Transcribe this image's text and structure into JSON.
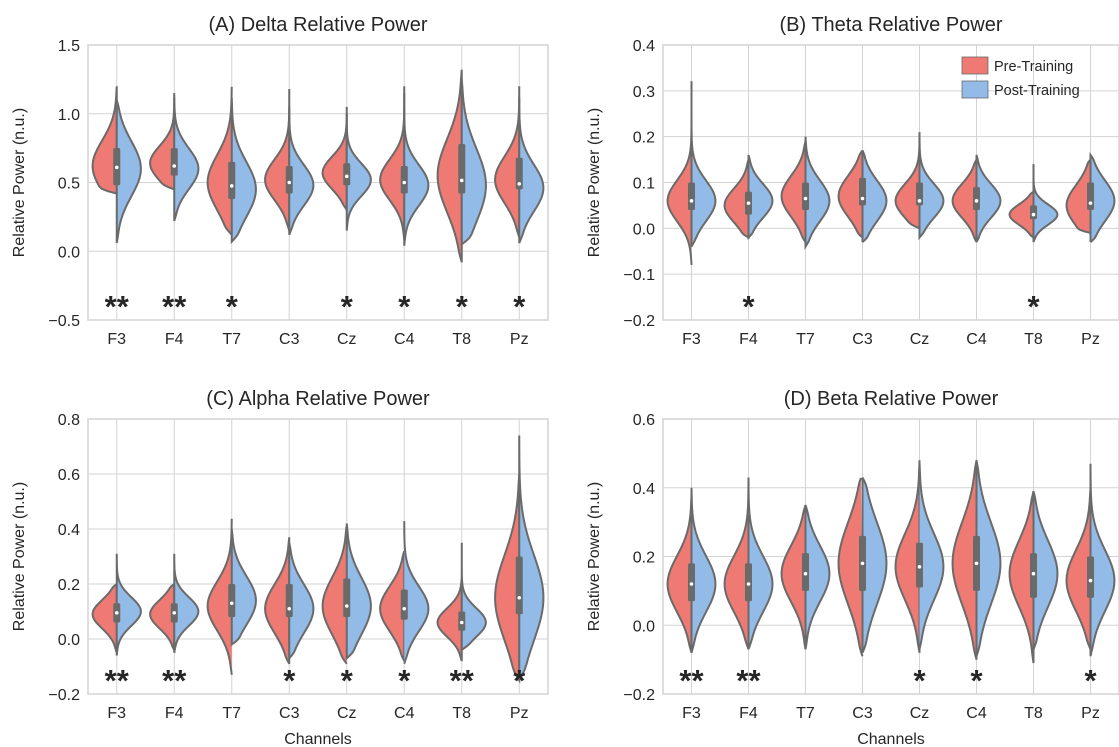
{
  "colors": {
    "pre": "#EE7A73",
    "post": "#93BBE8",
    "outline": "#6A6A6A",
    "grid": "#D3D3D3",
    "text": "#262626"
  },
  "legend": {
    "placement": "top-right",
    "pre_label": "Pre-Training",
    "post_label": "Post-Training"
  },
  "xlabel": "Channels",
  "chart_data": [
    {
      "type": "violin",
      "title": "(A) Delta Relative Power",
      "ylabel": "Relative Power (n.u.)",
      "xlabel": "",
      "ylim": [
        -0.5,
        1.5
      ],
      "yticks": [
        "−0.5",
        "0.0",
        "0.5",
        "1.0",
        "1.5"
      ],
      "categories": [
        "F3",
        "F4",
        "T7",
        "C3",
        "Cz",
        "C4",
        "T8",
        "Pz"
      ],
      "series": [
        {
          "name": "Pre-Training",
          "min": [
            0.42,
            0.45,
            0.12,
            0.15,
            0.3,
            0.08,
            -0.08,
            0.1
          ],
          "max": [
            1.2,
            1.15,
            1.22,
            1.18,
            1.05,
            1.2,
            1.32,
            1.2
          ],
          "median": [
            0.62,
            0.64,
            0.5,
            0.52,
            0.57,
            0.52,
            0.55,
            0.52
          ],
          "q1": [
            0.5,
            0.58,
            0.38,
            0.42,
            0.48,
            0.42,
            0.42,
            0.45
          ],
          "q3": [
            0.75,
            0.75,
            0.65,
            0.62,
            0.64,
            0.62,
            0.78,
            0.68
          ]
        },
        {
          "name": "Post-Training",
          "min": [
            0.06,
            0.22,
            0.07,
            0.12,
            0.15,
            0.04,
            0.05,
            0.06
          ],
          "max": [
            1.1,
            1.12,
            1.12,
            1.05,
            1.0,
            1.15,
            1.25,
            1.12
          ],
          "median": [
            0.6,
            0.6,
            0.45,
            0.48,
            0.52,
            0.48,
            0.48,
            0.46
          ],
          "q1": [
            0.48,
            0.55,
            0.38,
            0.42,
            0.48,
            0.42,
            0.42,
            0.45
          ],
          "q3": [
            0.75,
            0.75,
            0.65,
            0.62,
            0.64,
            0.62,
            0.78,
            0.68
          ]
        }
      ],
      "significance": [
        "**",
        "**",
        "*",
        "",
        "*",
        "*",
        "*",
        "*"
      ]
    },
    {
      "type": "violin",
      "title": "(B) Theta Relative Power",
      "ylabel": "Relative Power (n.u.)",
      "xlabel": "",
      "ylim": [
        -0.2,
        0.4
      ],
      "yticks": [
        "−0.2",
        "−0.1",
        "0.0",
        "0.1",
        "0.2",
        "0.3",
        "0.4"
      ],
      "categories": [
        "F3",
        "F4",
        "T7",
        "C3",
        "Cz",
        "C4",
        "T8",
        "Pz"
      ],
      "series": [
        {
          "name": "Pre-Training",
          "min": [
            -0.08,
            -0.02,
            -0.03,
            -0.02,
            0.0,
            -0.03,
            -0.02,
            -0.01
          ],
          "max": [
            0.33,
            0.15,
            0.19,
            0.17,
            0.21,
            0.15,
            0.08,
            0.15
          ],
          "median": [
            0.06,
            0.05,
            0.07,
            0.07,
            0.06,
            0.06,
            0.03,
            0.05
          ],
          "q1": [
            0.04,
            0.03,
            0.04,
            0.05,
            0.05,
            0.04,
            0.02,
            0.04
          ],
          "q3": [
            0.1,
            0.08,
            0.1,
            0.11,
            0.1,
            0.09,
            0.05,
            0.1
          ]
        },
        {
          "name": "Post-Training",
          "min": [
            -0.04,
            -0.02,
            -0.04,
            -0.03,
            -0.02,
            -0.03,
            -0.03,
            -0.03
          ],
          "max": [
            0.26,
            0.16,
            0.2,
            0.17,
            0.2,
            0.16,
            0.14,
            0.16
          ],
          "median": [
            0.06,
            0.06,
            0.06,
            0.06,
            0.06,
            0.06,
            0.03,
            0.06
          ],
          "q1": [
            0.04,
            0.03,
            0.04,
            0.05,
            0.05,
            0.04,
            0.02,
            0.04
          ],
          "q3": [
            0.1,
            0.08,
            0.1,
            0.11,
            0.1,
            0.09,
            0.05,
            0.1
          ]
        }
      ],
      "significance": [
        "",
        "*",
        "",
        "",
        "",
        "",
        "*",
        ""
      ]
    },
    {
      "type": "violin",
      "title": "(C) Alpha Relative Power",
      "ylabel": "Relative Power (n.u.)",
      "xlabel": "Channels",
      "ylim": [
        -0.2,
        0.8
      ],
      "yticks": [
        "−0.2",
        "0.0",
        "0.2",
        "0.4",
        "0.6",
        "0.8"
      ],
      "categories": [
        "F3",
        "F4",
        "T7",
        "C3",
        "Cz",
        "C4",
        "T8",
        "Pz"
      ],
      "series": [
        {
          "name": "Pre-Training",
          "min": [
            -0.05,
            -0.04,
            -0.13,
            -0.09,
            -0.09,
            -0.08,
            -0.08,
            -0.15
          ],
          "max": [
            0.2,
            0.2,
            0.45,
            0.37,
            0.42,
            0.32,
            0.22,
            0.6
          ],
          "median": [
            0.09,
            0.09,
            0.12,
            0.11,
            0.12,
            0.11,
            0.06,
            0.15
          ],
          "q1": [
            0.06,
            0.06,
            0.08,
            0.08,
            0.08,
            0.07,
            0.03,
            0.09
          ],
          "q3": [
            0.13,
            0.13,
            0.2,
            0.2,
            0.22,
            0.18,
            0.1,
            0.3
          ]
        },
        {
          "name": "Post-Training",
          "min": [
            -0.06,
            -0.05,
            -0.02,
            -0.07,
            -0.07,
            -0.09,
            -0.04,
            -0.15
          ],
          "max": [
            0.31,
            0.31,
            0.4,
            0.35,
            0.42,
            0.44,
            0.35,
            0.74
          ],
          "median": [
            0.1,
            0.1,
            0.14,
            0.11,
            0.12,
            0.11,
            0.06,
            0.15
          ],
          "q1": [
            0.06,
            0.06,
            0.08,
            0.08,
            0.08,
            0.07,
            0.03,
            0.09
          ],
          "q3": [
            0.13,
            0.13,
            0.2,
            0.2,
            0.22,
            0.18,
            0.1,
            0.3
          ]
        }
      ],
      "significance": [
        "**",
        "**",
        "",
        "*",
        "*",
        "*",
        "**",
        "*"
      ]
    },
    {
      "type": "violin",
      "title": "(D) Beta Relative Power",
      "ylabel": "Relative Power (n.u.)",
      "xlabel": "Channels",
      "ylim": [
        -0.2,
        0.6
      ],
      "yticks": [
        "−0.2",
        "0.0",
        "0.2",
        "0.4",
        "0.6"
      ],
      "categories": [
        "F3",
        "F4",
        "T7",
        "C3",
        "Cz",
        "C4",
        "T8",
        "Pz"
      ],
      "series": [
        {
          "name": "Pre-Training",
          "min": [
            -0.08,
            -0.07,
            -0.07,
            -0.09,
            -0.08,
            -0.1,
            -0.11,
            -0.07
          ],
          "max": [
            0.38,
            0.42,
            0.35,
            0.44,
            0.48,
            0.48,
            0.39,
            0.4
          ],
          "median": [
            0.12,
            0.12,
            0.15,
            0.18,
            0.17,
            0.18,
            0.15,
            0.13
          ],
          "q1": [
            0.07,
            0.07,
            0.1,
            0.1,
            0.11,
            0.1,
            0.08,
            0.08
          ],
          "q3": [
            0.18,
            0.18,
            0.21,
            0.26,
            0.24,
            0.26,
            0.21,
            0.2
          ]
        },
        {
          "name": "Post-Training",
          "min": [
            -0.08,
            -0.07,
            -0.07,
            -0.08,
            -0.07,
            -0.09,
            -0.07,
            -0.09
          ],
          "max": [
            0.4,
            0.43,
            0.35,
            0.43,
            0.48,
            0.48,
            0.39,
            0.47
          ],
          "median": [
            0.12,
            0.12,
            0.15,
            0.18,
            0.17,
            0.18,
            0.15,
            0.13
          ],
          "q1": [
            0.07,
            0.07,
            0.1,
            0.1,
            0.11,
            0.1,
            0.08,
            0.08
          ],
          "q3": [
            0.18,
            0.18,
            0.21,
            0.26,
            0.24,
            0.26,
            0.21,
            0.2
          ]
        }
      ],
      "significance": [
        "**",
        "**",
        "",
        "",
        "*",
        "*",
        "",
        "*"
      ]
    }
  ]
}
